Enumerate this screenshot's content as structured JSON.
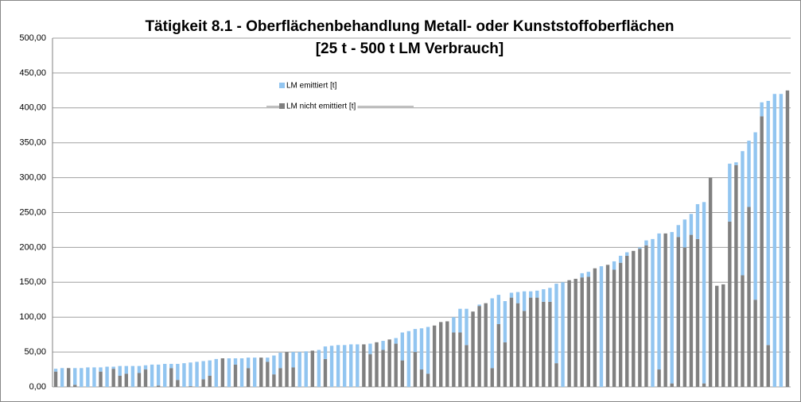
{
  "chart_data": {
    "type": "stacked_bar",
    "title": "Tätigkeit 8.1 - Oberflächenbehandlung Metall- oder Kunststoffoberflächen",
    "subtitle": "[25 t - 500 t LM Verbrauch]",
    "categories": [
      null,
      null,
      null,
      null,
      null,
      null,
      null,
      null,
      null,
      null,
      null,
      null,
      null,
      null,
      null,
      null,
      null,
      null,
      null,
      null,
      null,
      null,
      null,
      null,
      null,
      null,
      null,
      null,
      null,
      null,
      null,
      null,
      null,
      null,
      null,
      null,
      null,
      null,
      null,
      null,
      null,
      null,
      null,
      null,
      null,
      null,
      null,
      null,
      null,
      null,
      null,
      null,
      null,
      null,
      null,
      null,
      null,
      null,
      null,
      null,
      null,
      null,
      null,
      null,
      null,
      null,
      null,
      null,
      null,
      null,
      null,
      null,
      null,
      null,
      null,
      null,
      null,
      null,
      null,
      null,
      null,
      null,
      null,
      null,
      null,
      null,
      null,
      null,
      null,
      null,
      null,
      null,
      null,
      null,
      null,
      null,
      null,
      null,
      null,
      null,
      null,
      null,
      null,
      null,
      null,
      null,
      null,
      null,
      null,
      null,
      null,
      null,
      null,
      null,
      null
    ],
    "series": [
      {
        "name": "LM emittiert [t]",
        "color": "#92c5f0",
        "values": [
          4,
          27,
          0,
          24,
          27,
          28,
          28,
          6,
          29,
          3,
          14,
          11,
          30,
          10,
          6,
          32,
          30,
          33,
          6,
          23,
          34,
          34,
          36,
          26,
          22,
          40,
          0,
          41,
          9,
          41,
          15,
          42,
          0,
          6,
          27,
          22,
          0,
          22,
          50,
          51,
          0,
          53,
          18,
          59,
          60,
          60,
          61,
          61,
          0,
          15,
          0,
          13,
          0,
          8,
          40,
          80,
          33,
          59,
          67,
          0,
          0,
          0,
          22,
          34,
          52,
          0,
          2,
          0,
          100,
          42,
          59,
          7,
          16,
          28,
          9,
          10,
          18,
          20,
          114,
          150,
          0,
          0,
          6,
          7,
          0,
          173,
          0,
          12,
          10,
          5,
          0,
          2,
          7,
          212,
          195,
          0,
          217,
          17,
          40,
          30,
          50,
          260,
          0,
          0,
          0,
          83,
          4,
          178,
          95,
          240,
          20,
          350,
          420,
          420,
          0
        ]
      },
      {
        "name": "LM nicht emittiert [t]",
        "color": "#808080",
        "values": [
          22,
          0,
          27,
          3,
          0,
          0,
          0,
          22,
          0,
          26,
          16,
          19,
          0,
          20,
          25,
          0,
          2,
          0,
          27,
          10,
          0,
          1,
          0,
          11,
          16,
          0,
          41,
          0,
          32,
          0,
          27,
          0,
          42,
          36,
          18,
          27,
          50,
          28,
          0,
          0,
          52,
          0,
          40,
          0,
          0,
          0,
          0,
          0,
          61,
          47,
          64,
          53,
          68,
          62,
          38,
          0,
          50,
          25,
          19,
          88,
          93,
          94,
          78,
          78,
          60,
          108,
          116,
          120,
          27,
          90,
          64,
          128,
          120,
          109,
          128,
          128,
          122,
          122,
          34,
          0,
          153,
          155,
          157,
          158,
          170,
          0,
          175,
          168,
          178,
          188,
          195,
          198,
          203,
          0,
          25,
          220,
          5,
          215,
          200,
          218,
          212,
          5,
          300,
          145,
          147,
          237,
          318,
          160,
          258,
          125,
          388,
          60,
          0,
          0,
          425
        ]
      }
    ],
    "ylim": [
      0,
      500
    ],
    "yticks": [
      {
        "value": 0,
        "label": "0,00"
      },
      {
        "value": 50,
        "label": "50,00"
      },
      {
        "value": 100,
        "label": "100,00"
      },
      {
        "value": 150,
        "label": "150,00"
      },
      {
        "value": 200,
        "label": "200,00"
      },
      {
        "value": 250,
        "label": "250,00"
      },
      {
        "value": 300,
        "label": "300,00"
      },
      {
        "value": 350,
        "label": "350,00"
      },
      {
        "value": 400,
        "label": "400,00"
      },
      {
        "value": 450,
        "label": "450,00"
      },
      {
        "value": 500,
        "label": "500,00"
      }
    ],
    "grid": true
  }
}
